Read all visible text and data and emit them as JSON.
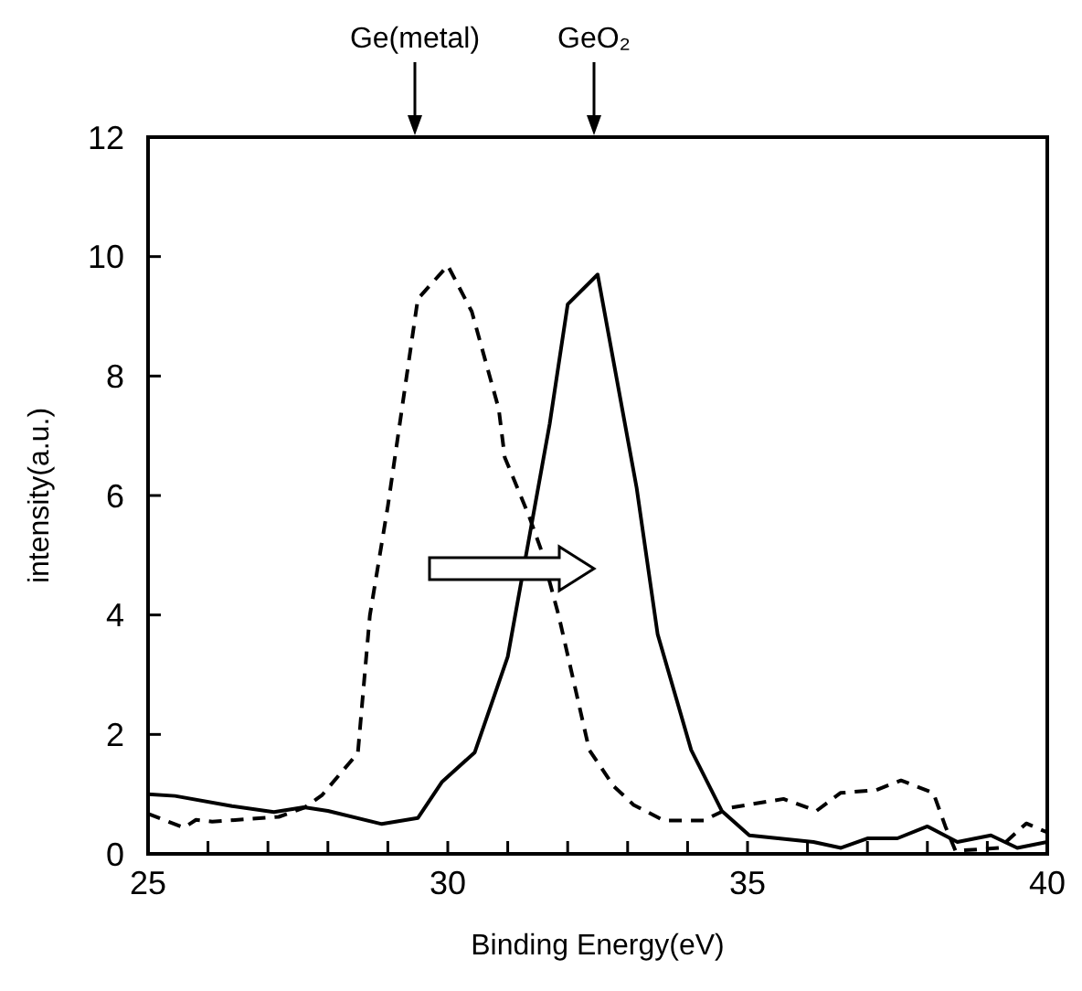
{
  "chart_data": {
    "type": "line",
    "xlabel": "Binding Energy(eV)",
    "ylabel": "intensity(a.u.)",
    "xlim": [
      25,
      40
    ],
    "ylim": [
      0,
      12
    ],
    "xticks": [
      25,
      {
        "value": 26,
        "label": null
      },
      {
        "value": 27,
        "label": null
      },
      {
        "value": 28,
        "label": null
      },
      {
        "value": 29,
        "label": null
      },
      30,
      {
        "value": 31,
        "label": null
      },
      {
        "value": 32,
        "label": null
      },
      {
        "value": 33,
        "label": null
      },
      {
        "value": 34,
        "label": null
      },
      35,
      {
        "value": 36,
        "label": null
      },
      {
        "value": 37,
        "label": null
      },
      {
        "value": 38,
        "label": null
      },
      {
        "value": 39,
        "label": null
      },
      40
    ],
    "yticks": [
      0,
      2,
      4,
      6,
      8,
      10,
      12
    ],
    "marker": "none",
    "annotations": [
      "Ge(metal)",
      "GeO₂"
    ],
    "series": [
      {
        "color": "#000000",
        "line_style": "dashed",
        "x": [
          25,
          25.6,
          25.8,
          26.07,
          27.18,
          27.6,
          27.9,
          28.5,
          28.7,
          29,
          29.5,
          30,
          30.4,
          30.85,
          30.95,
          31.35,
          31.55,
          31.85,
          32.36,
          32.77,
          33.1,
          33.6,
          34.27,
          34.7,
          35.6,
          36.15,
          36.55,
          37.15,
          37.56,
          38.1,
          38.3,
          38.47,
          39.2,
          39.65,
          40
        ],
        "values": [
          0.67,
          0.44,
          0.57,
          0.54,
          0.62,
          0.77,
          0.98,
          1.69,
          3.99,
          5.82,
          9.29,
          9.85,
          9.08,
          7.45,
          6.64,
          5.67,
          5.11,
          3.99,
          1.74,
          1.13,
          0.82,
          0.56,
          0.56,
          0.77,
          0.92,
          0.72,
          1.02,
          1.07,
          1.23,
          1.02,
          0.46,
          0.05,
          0.1,
          0.51,
          0.36
        ]
      },
      {
        "color": "#000000",
        "line_style": "solid",
        "x": [
          25,
          25.45,
          26.4,
          27.1,
          27.6,
          28,
          28.9,
          29.5,
          29.9,
          30.45,
          31,
          31.7,
          32,
          32.5,
          33.15,
          33.5,
          34.06,
          34.57,
          35.03,
          36.1,
          36.56,
          37,
          37.5,
          38,
          38.5,
          39.06,
          39.5,
          40
        ],
        "values": [
          1.0,
          0.97,
          0.8,
          0.7,
          0.78,
          0.72,
          0.5,
          0.6,
          1.2,
          1.7,
          3.3,
          7.2,
          9.2,
          9.7,
          6.13,
          3.68,
          1.74,
          0.72,
          0.31,
          0.2,
          0.1,
          0.26,
          0.26,
          0.46,
          0.2,
          0.31,
          0.1,
          0.2
        ]
      }
    ]
  }
}
